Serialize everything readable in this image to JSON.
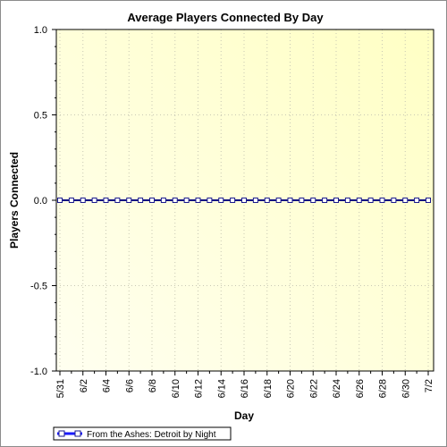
{
  "chart_data": {
    "type": "line",
    "title": "Average Players Connected By Day",
    "xlabel": "Day",
    "ylabel": "Players Connected",
    "ylim": [
      -1.0,
      1.0
    ],
    "yticks": [
      "1.0",
      "0.5",
      "0.0",
      "-0.5",
      "-1.0"
    ],
    "ytick_values": [
      1.0,
      0.5,
      0.0,
      -0.5,
      -1.0
    ],
    "x": [
      "5/31",
      "6/1",
      "6/2",
      "6/3",
      "6/4",
      "6/5",
      "6/6",
      "6/7",
      "6/8",
      "6/9",
      "6/10",
      "6/11",
      "6/12",
      "6/13",
      "6/14",
      "6/15",
      "6/16",
      "6/17",
      "6/18",
      "6/19",
      "6/20",
      "6/21",
      "6/22",
      "6/23",
      "6/24",
      "6/25",
      "6/26",
      "6/27",
      "6/28",
      "6/29",
      "6/30",
      "7/1",
      "7/2"
    ],
    "xtick_labels": [
      "5/31",
      "6/2",
      "6/4",
      "6/6",
      "6/8",
      "6/10",
      "6/12",
      "6/14",
      "6/16",
      "6/18",
      "6/20",
      "6/22",
      "6/24",
      "6/26",
      "6/28",
      "6/30",
      "7/2"
    ],
    "grid": true,
    "legend_position": "bottom-left",
    "series": [
      {
        "name": "From the Ashes: Detroit by Night",
        "color": "#1a1aff",
        "values": [
          0,
          0,
          0,
          0,
          0,
          0,
          0,
          0,
          0,
          0,
          0,
          0,
          0,
          0,
          0,
          0,
          0,
          0,
          0,
          0,
          0,
          0,
          0,
          0,
          0,
          0,
          0,
          0,
          0,
          0,
          0,
          0,
          0
        ]
      }
    ]
  }
}
